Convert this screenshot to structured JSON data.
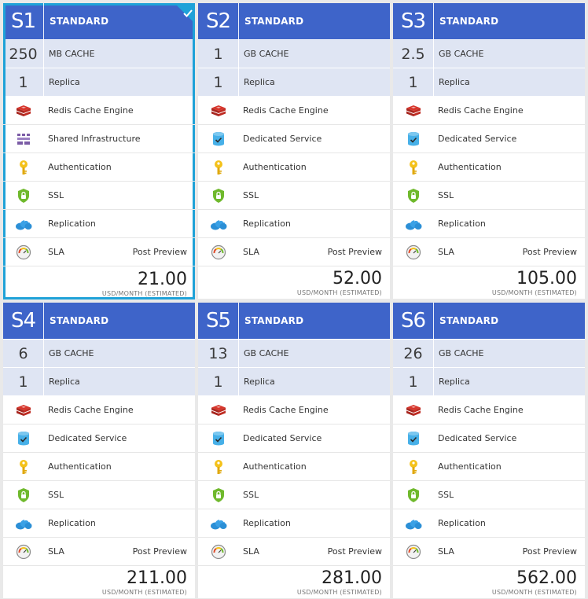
{
  "cards": [
    {
      "tier": "S1",
      "standard": "STANDARD",
      "cache_num": "250",
      "cache_label": "MB CACHE",
      "replica_num": "1",
      "replica_label": "Replica",
      "price": "21.00",
      "unit": "USD/MONTH (ESTIMATED)",
      "infra": "Shared Infrastructure",
      "infra_icon": "shared-infrastructure-icon",
      "selected": true
    },
    {
      "tier": "S2",
      "standard": "STANDARD",
      "cache_num": "1",
      "cache_label": "GB CACHE",
      "replica_num": "1",
      "replica_label": "Replica",
      "price": "52.00",
      "unit": "USD/MONTH (ESTIMATED)",
      "infra": "Dedicated Service",
      "infra_icon": "dedicated-service-icon",
      "selected": false
    },
    {
      "tier": "S3",
      "standard": "STANDARD",
      "cache_num": "2.5",
      "cache_label": "GB CACHE",
      "replica_num": "1",
      "replica_label": "Replica",
      "price": "105.00",
      "unit": "USD/MONTH (ESTIMATED)",
      "infra": "Dedicated Service",
      "infra_icon": "dedicated-service-icon",
      "selected": false
    },
    {
      "tier": "S4",
      "standard": "STANDARD",
      "cache_num": "6",
      "cache_label": "GB CACHE",
      "replica_num": "1",
      "replica_label": "Replica",
      "price": "211.00",
      "unit": "USD/MONTH (ESTIMATED)",
      "infra": "Dedicated Service",
      "infra_icon": "dedicated-service-icon",
      "selected": false
    },
    {
      "tier": "S5",
      "standard": "STANDARD",
      "cache_num": "13",
      "cache_label": "GB CACHE",
      "replica_num": "1",
      "replica_label": "Replica",
      "price": "281.00",
      "unit": "USD/MONTH (ESTIMATED)",
      "infra": "Dedicated Service",
      "infra_icon": "dedicated-service-icon",
      "selected": false
    },
    {
      "tier": "S6",
      "standard": "STANDARD",
      "cache_num": "26",
      "cache_label": "GB CACHE",
      "replica_num": "1",
      "replica_label": "Replica",
      "price": "562.00",
      "unit": "USD/MONTH (ESTIMATED)",
      "infra": "Dedicated Service",
      "infra_icon": "dedicated-service-icon",
      "selected": false
    }
  ],
  "features": {
    "redis": "Redis Cache Engine",
    "auth": "Authentication",
    "ssl": "SSL",
    "replication": "Replication",
    "sla": "SLA",
    "sla_note": "Post Preview"
  },
  "colors": {
    "header": "#3e64c9",
    "spec_bg": "#dfe5f3",
    "selected_border": "#1fa2d8"
  }
}
